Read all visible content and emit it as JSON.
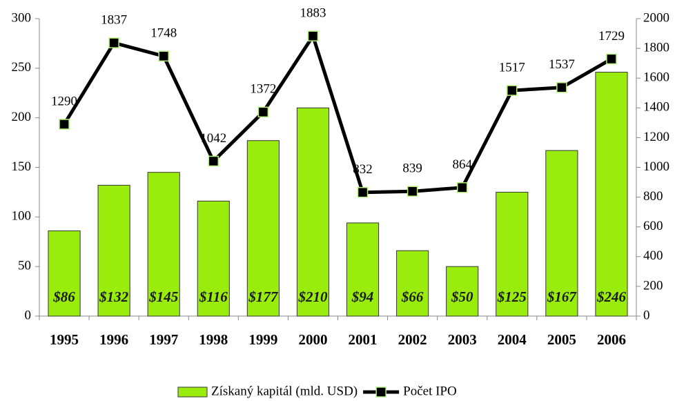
{
  "chart_data": {
    "type": "bar",
    "categories": [
      "1995",
      "1996",
      "1997",
      "1998",
      "1999",
      "2000",
      "2001",
      "2002",
      "2003",
      "2004",
      "2005",
      "2006"
    ],
    "series": [
      {
        "name": "Získaný kapitál (mld. USD)",
        "type": "bar",
        "color": "#99ec0c",
        "values": [
          86,
          132,
          145,
          116,
          177,
          210,
          94,
          66,
          50,
          125,
          167,
          246
        ],
        "value_labels": [
          "$86",
          "$132",
          "$145",
          "$116",
          "$177",
          "$210",
          "$94",
          "$66",
          "$50",
          "$125",
          "$167",
          "$246"
        ]
      },
      {
        "name": "Počet IPO",
        "type": "line",
        "axis": "y2",
        "color": "#000000",
        "values": [
          1290,
          1837,
          1748,
          1042,
          1372,
          1883,
          832,
          839,
          864,
          1517,
          1537,
          1729
        ]
      }
    ],
    "ylim": [
      0,
      300
    ],
    "yticks": [
      0,
      50,
      100,
      150,
      200,
      250,
      300
    ],
    "y2lim": [
      0,
      2000
    ],
    "y2ticks": [
      0,
      200,
      400,
      600,
      800,
      1000,
      1200,
      1400,
      1600,
      1800,
      2000
    ],
    "legend": "bottom"
  }
}
